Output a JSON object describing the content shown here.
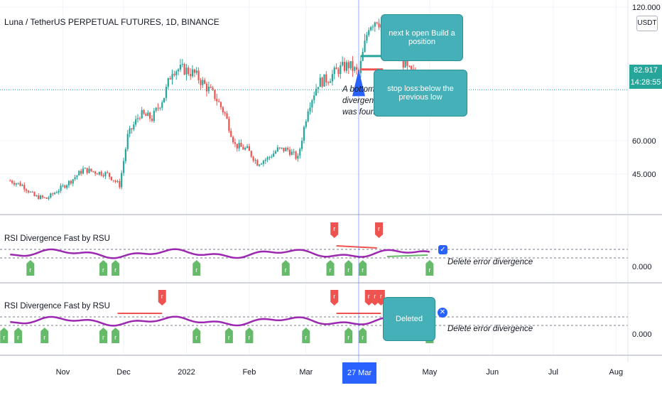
{
  "chart_data": [
    {
      "type": "candlestick",
      "title": "Luna / TetherUS PERPETUAL FUTURES, 1D, BINANCE",
      "ylim": [
        30,
        120
      ],
      "y_ticks": [
        45,
        60,
        120
      ],
      "y_tick_labels": [
        "45.000",
        "60.000",
        "120.000"
      ],
      "price_unit": "USDT",
      "last_price": "82.917",
      "countdown": "14:28:55",
      "last_price_value": 82.917,
      "grid": true,
      "x_ticks": [
        "Nov",
        "Dec",
        "2022",
        "Feb",
        "Mar",
        "May",
        "Jun",
        "Jul",
        "Aug"
      ],
      "crosshair_date": "27 Mar '22",
      "close_path": [
        [
          "2021-10-06",
          42
        ],
        [
          "2021-10-12",
          40
        ],
        [
          "2021-10-18",
          35
        ],
        [
          "2021-10-24",
          34
        ],
        [
          "2021-10-30",
          38
        ],
        [
          "2021-11-05",
          42
        ],
        [
          "2021-11-11",
          47
        ],
        [
          "2021-11-17",
          46
        ],
        [
          "2021-11-23",
          45
        ],
        [
          "2021-11-29",
          40
        ],
        [
          "2021-12-03",
          62
        ],
        [
          "2021-12-09",
          72
        ],
        [
          "2021-12-15",
          70
        ],
        [
          "2021-12-21",
          80
        ],
        [
          "2021-12-25",
          92
        ],
        [
          "2021-12-31",
          92
        ],
        [
          "2022-01-05",
          90
        ],
        [
          "2022-01-10",
          85
        ],
        [
          "2022-01-15",
          80
        ],
        [
          "2022-01-20",
          72
        ],
        [
          "2022-01-25",
          58
        ],
        [
          "2022-01-31",
          56
        ],
        [
          "2022-02-05",
          50
        ],
        [
          "2022-02-10",
          52
        ],
        [
          "2022-02-15",
          56
        ],
        [
          "2022-02-20",
          56
        ],
        [
          "2022-02-25",
          52
        ],
        [
          "2022-03-02",
          75
        ],
        [
          "2022-03-07",
          86
        ],
        [
          "2022-03-12",
          88
        ],
        [
          "2022-03-17",
          92
        ],
        [
          "2022-03-22",
          94
        ],
        [
          "2022-03-27",
          90
        ],
        [
          "2022-04-01",
          112
        ],
        [
          "2022-04-05",
          115
        ],
        [
          "2022-04-10",
          108
        ],
        [
          "2022-04-15",
          100
        ],
        [
          "2022-04-20",
          92
        ],
        [
          "2022-04-25",
          88
        ],
        [
          "2022-05-01",
          84
        ]
      ]
    },
    {
      "type": "line",
      "name": "RSI Divergence Fast by RSU",
      "y_tick_labels": [
        "0.000"
      ]
    },
    {
      "type": "line",
      "name": "RSI Divergence Fast by RSU",
      "y_tick_labels": [
        "0.000"
      ]
    }
  ],
  "annotations": {
    "bottom_note": "A bottom divergence was found",
    "callout_entry": "next k open Build a position",
    "callout_stop": "stop loss:below the previous low",
    "callout_deleted": "Deleted",
    "delete_note_1": "Delete error divergence",
    "delete_note_2": "Delete error divergence"
  },
  "markers": {
    "bear_letter": "r",
    "bull_letter": "r"
  },
  "colors": {
    "up": "#26a69a",
    "down": "#ef5350",
    "rsi_line": "#9c27b0",
    "bull_marker": "#66bb6a",
    "bear_marker": "#ef5350",
    "accent": "#2962ff",
    "callout": "#45b0b8"
  }
}
